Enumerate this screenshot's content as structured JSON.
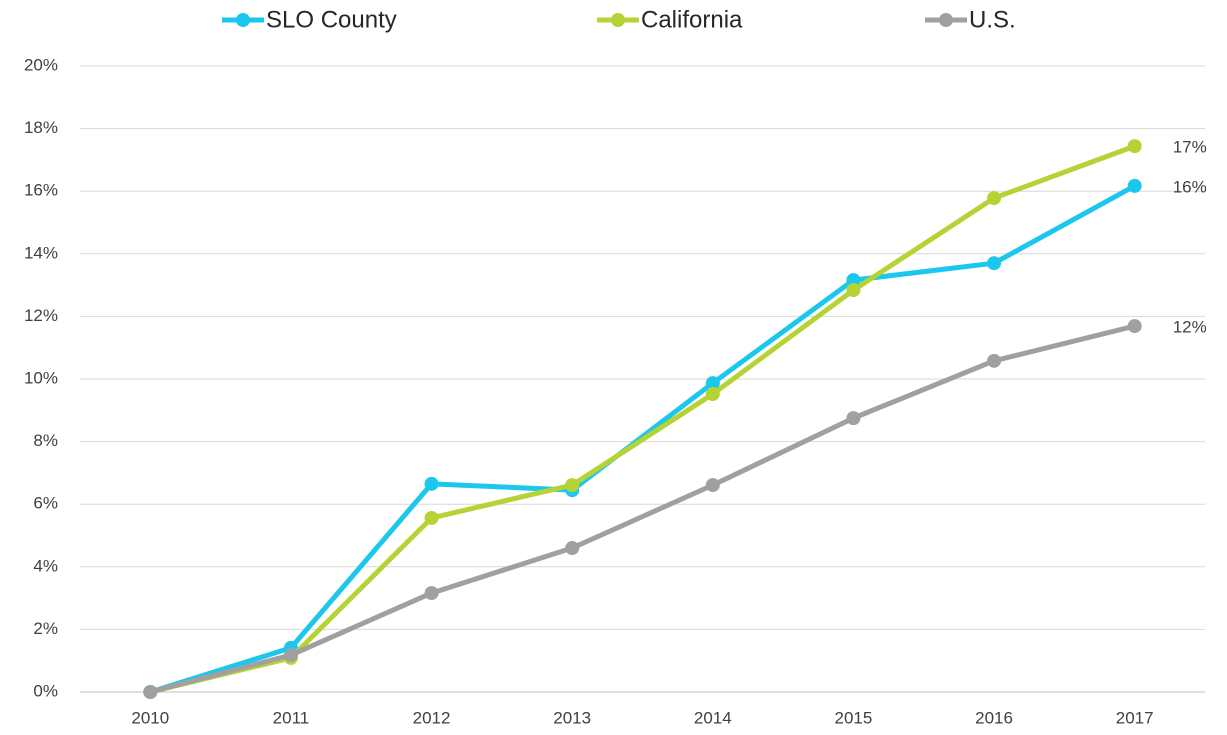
{
  "chart_data": {
    "type": "line",
    "categories": [
      "2010",
      "2011",
      "2012",
      "2013",
      "2014",
      "2015",
      "2016",
      "2017"
    ],
    "series": [
      {
        "name": "SLO County",
        "color": "#1cc7ee",
        "values": [
          0,
          1.41,
          6.65,
          6.45,
          9.87,
          13.16,
          13.7,
          16.17
        ],
        "value_labels": [
          null,
          null,
          null,
          null,
          null,
          null,
          null,
          "16%"
        ]
      },
      {
        "name": "California",
        "color": "#b5d334",
        "values": [
          0,
          1.09,
          5.56,
          6.61,
          9.52,
          12.84,
          15.78,
          17.44
        ],
        "value_labels": [
          null,
          null,
          null,
          null,
          null,
          null,
          null,
          "17%"
        ]
      },
      {
        "name": "U.S.",
        "color": "#a0a0a0",
        "values": [
          0,
          1.18,
          3.16,
          4.6,
          6.61,
          8.75,
          10.58,
          11.69
        ],
        "value_labels": [
          null,
          null,
          null,
          null,
          null,
          null,
          null,
          "12%"
        ]
      }
    ],
    "ylim": [
      0,
      20
    ],
    "yticks": [
      {
        "value": 0,
        "label": "0%"
      },
      {
        "value": 2,
        "label": "2%"
      },
      {
        "value": 4,
        "label": "4%"
      },
      {
        "value": 6,
        "label": "6%"
      },
      {
        "value": 8,
        "label": "8%"
      },
      {
        "value": 10,
        "label": "10%"
      },
      {
        "value": 12,
        "label": "12%"
      },
      {
        "value": 14,
        "label": "14%"
      },
      {
        "value": 16,
        "label": "16%"
      },
      {
        "value": 18,
        "label": "18%"
      },
      {
        "value": 20,
        "label": "20%"
      }
    ],
    "grid": true,
    "legend": "top"
  }
}
